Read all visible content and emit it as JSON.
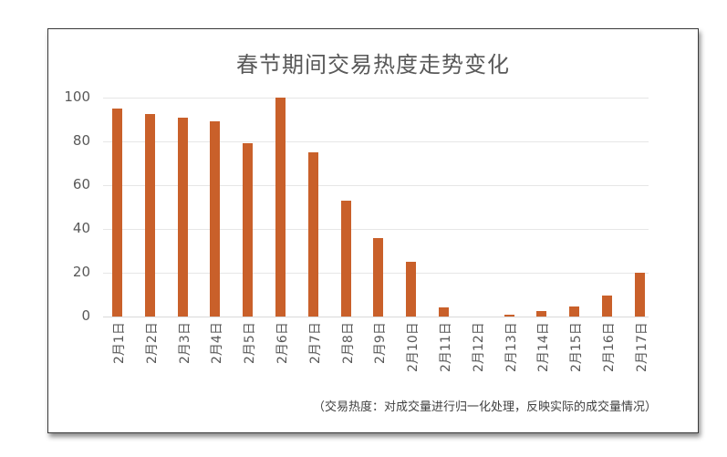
{
  "chart_data": {
    "type": "bar",
    "title": "春节期间交易热度走势变化",
    "xlabel": "",
    "ylabel": "",
    "ylim": [
      0,
      100
    ],
    "yticks": [
      0,
      20,
      40,
      60,
      80,
      100
    ],
    "grid": true,
    "legend": null,
    "color": "#c9602a",
    "categories": [
      "2月1日",
      "2月2日",
      "2月3日",
      "2月4日",
      "2月5日",
      "2月6日",
      "2月7日",
      "2月8日",
      "2月9日",
      "2月10日",
      "2月11日",
      "2月12日",
      "2月13日",
      "2月14日",
      "2月15日",
      "2月16日",
      "2月17日"
    ],
    "series": [
      {
        "name": "交易热度",
        "values": [
          95,
          92.5,
          91,
          89,
          79,
          100,
          75,
          53,
          36,
          25,
          4,
          0,
          1,
          2.5,
          4.5,
          9.5,
          20
        ]
      }
    ],
    "annotation": "（交易热度：对成交量进行归一化处理，反映实际的成交量情况）"
  }
}
